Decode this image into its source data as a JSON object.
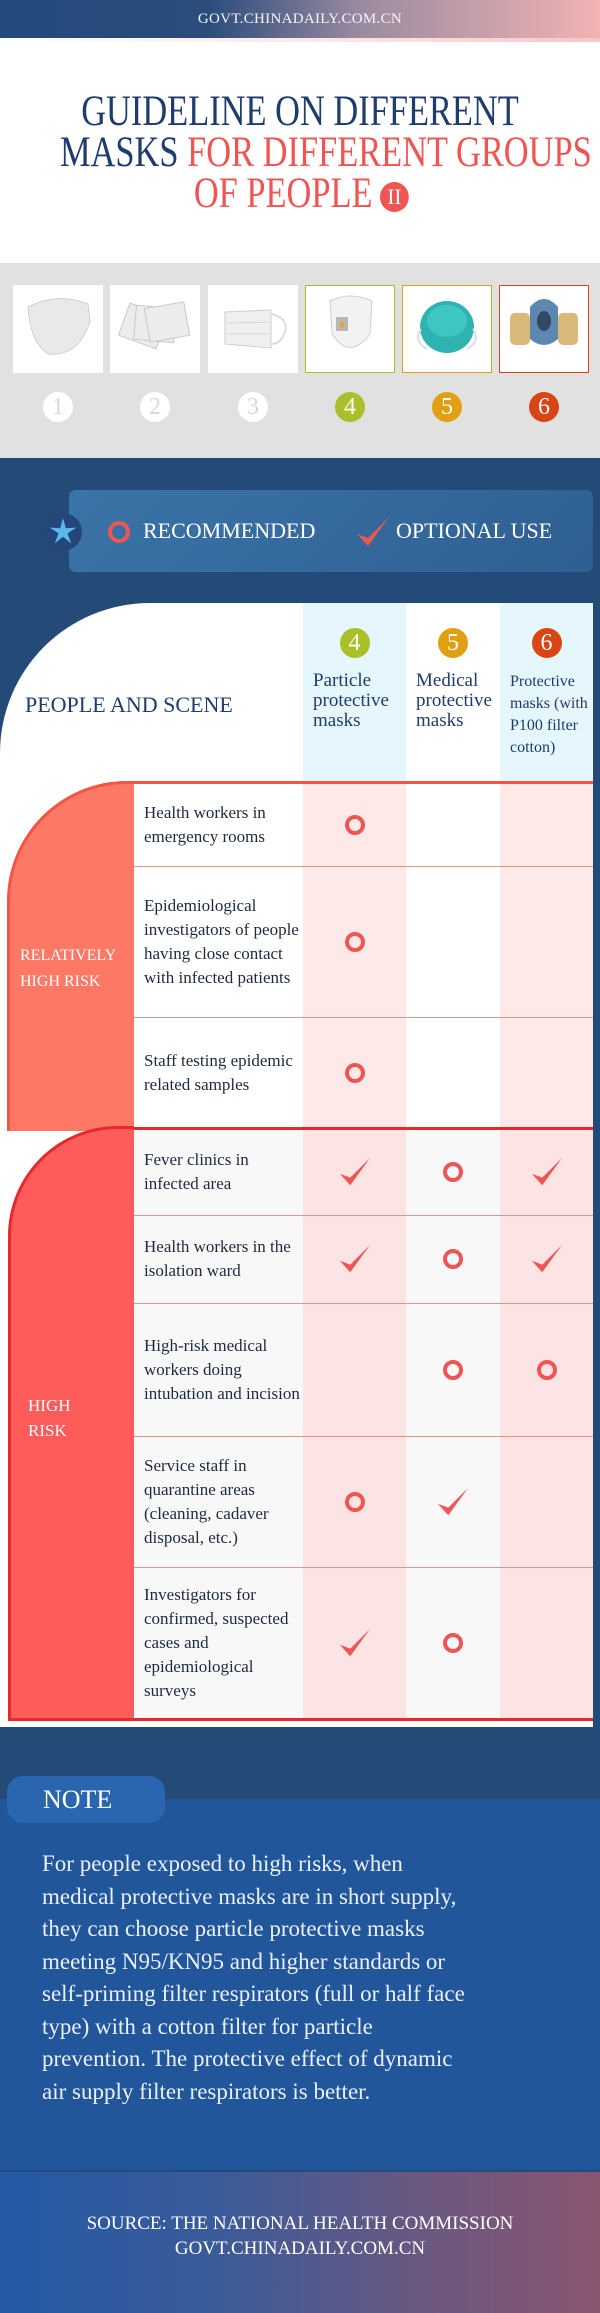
{
  "header": {
    "site": "GOVT.CHINADAILY.COM.CN"
  },
  "title": {
    "line1": "GUIDELINE ON DIFFERENT",
    "line2_navy": "MASKS",
    "line2_red": "FOR DIFFERENT GROUPS",
    "line3": "OF PEOPLE",
    "badge": "II",
    "navy_color": "#1f3c6e",
    "red_color": "#ef5552"
  },
  "masks": [
    {
      "number": "1",
      "icon": "sponge-mask-icon",
      "color": "#ffffff",
      "highlighted": false
    },
    {
      "number": "2",
      "icon": "surgical-mask-stack-icon",
      "color": "#ffffff",
      "highlighted": false
    },
    {
      "number": "3",
      "icon": "surgical-mask-icon",
      "color": "#ffffff",
      "highlighted": false
    },
    {
      "number": "4",
      "icon": "particle-mask-valve-icon",
      "color": "#a9c02b",
      "highlighted": true
    },
    {
      "number": "5",
      "icon": "medical-n95-mask-icon",
      "color": "#e1a014",
      "highlighted": true
    },
    {
      "number": "6",
      "icon": "respirator-p100-icon",
      "color": "#d94515",
      "highlighted": true
    }
  ],
  "legend": {
    "recommended": "RECOMMENDED",
    "optional": "OPTIONAL USE"
  },
  "table": {
    "header": "PEOPLE AND SCENE",
    "columns": [
      {
        "number": "4",
        "lines": [
          "Particle",
          "protective",
          "masks"
        ]
      },
      {
        "number": "5",
        "lines": [
          "Medical",
          "protective",
          "masks"
        ]
      },
      {
        "number": "6",
        "lines": [
          "Protective",
          "masks (with",
          "P100 filter",
          "cotton)"
        ]
      }
    ],
    "groups": [
      {
        "label_lines": [
          "RELATIVELY",
          "HIGH RISK"
        ]
      },
      {
        "label_lines": [
          "HIGH",
          "RISK"
        ]
      }
    ],
    "rows": [
      {
        "group": 0,
        "scene": "Health workers in emergency rooms",
        "marks": [
          "recommended",
          "",
          ""
        ]
      },
      {
        "group": 0,
        "scene": "Epidemiological investigators of people having close contact with infected patients",
        "marks": [
          "recommended",
          "",
          ""
        ]
      },
      {
        "group": 0,
        "scene": "Staff testing epidemic related samples",
        "marks": [
          "recommended",
          "",
          ""
        ]
      },
      {
        "group": 1,
        "scene": "Fever clinics in infected area",
        "marks": [
          "optional",
          "recommended",
          "optional"
        ]
      },
      {
        "group": 1,
        "scene": "Health workers in the isolation ward",
        "marks": [
          "optional",
          "recommended",
          "optional"
        ]
      },
      {
        "group": 1,
        "scene": "High-risk medical workers doing intubation and incision",
        "marks": [
          "",
          "recommended",
          "recommended"
        ]
      },
      {
        "group": 1,
        "scene": "Service staff in quarantine areas (cleaning, cadaver disposal, etc.)",
        "marks": [
          "recommended",
          "optional",
          ""
        ]
      },
      {
        "group": 1,
        "scene": "Investigators for confirmed, suspected cases and epidemiological surveys",
        "marks": [
          "optional",
          "recommended",
          ""
        ]
      }
    ]
  },
  "note": {
    "label": "NOTE",
    "lines": [
      "For people exposed to high risks, when",
      "medical protective masks are in short supply,",
      "they can choose particle protective masks",
      "meeting N95/KN95 and higher standards or",
      "self-priming filter respirators (full or half face",
      "type) with a cotton filter for particle",
      "prevention. The protective effect of dynamic",
      "air supply filter respirators is better."
    ]
  },
  "footer": {
    "source": "SOURCE: THE NATIONAL HEALTH COMMISSION",
    "site": "GOVT.CHINADAILY.COM.CN"
  }
}
